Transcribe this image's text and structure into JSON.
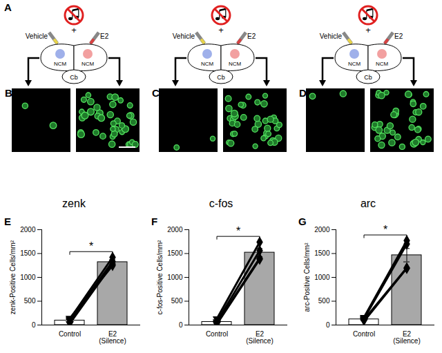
{
  "panel_letters": [
    "A",
    "B",
    "C",
    "D",
    "E",
    "F",
    "G"
  ],
  "schematic": {
    "left_injection": "Vehicle",
    "right_injection": "E2",
    "region": "NCM",
    "cerebellum": "Cb",
    "combined_with": "+"
  },
  "micrograph_labels": [
    "zenk",
    "c-fos",
    "arc"
  ],
  "chart_data": [
    {
      "type": "bar",
      "categories": [
        "Control",
        "E2\n(Silence)"
      ],
      "values": [
        95,
        1320
      ],
      "errors": [
        30,
        50
      ],
      "individual": [
        [
          120,
          1420
        ],
        [
          90,
          1330
        ],
        [
          140,
          1250
        ],
        [
          30,
          1280
        ]
      ],
      "ylabel": "zenk-Positive Cells/mm²",
      "ylim": [
        0,
        2000
      ],
      "yticks": [
        0,
        500,
        1000,
        1500,
        2000
      ],
      "colors": [
        "#ffffff",
        "#a8a8a8"
      ],
      "annotations": [
        "*"
      ]
    },
    {
      "type": "bar",
      "categories": [
        "Control",
        "E2\n(Silence)"
      ],
      "values": [
        65,
        1520
      ],
      "errors": [
        30,
        85
      ],
      "individual": [
        [
          130,
          1740
        ],
        [
          70,
          1560
        ],
        [
          40,
          1400
        ],
        [
          20,
          1380
        ]
      ],
      "ylabel": "c-fos-Positive Cells/mm²",
      "ylim": [
        0,
        2000
      ],
      "yticks": [
        0,
        500,
        1000,
        1500,
        2000
      ],
      "colors": [
        "#ffffff",
        "#a8a8a8"
      ],
      "annotations": [
        "*"
      ]
    },
    {
      "type": "bar",
      "categories": [
        "Control",
        "E2\n(Silence)"
      ],
      "values": [
        120,
        1465
      ],
      "errors": [
        30,
        140
      ],
      "individual": [
        [
          160,
          1770
        ],
        [
          130,
          1700
        ],
        [
          110,
          1200
        ],
        [
          80,
          1190
        ]
      ],
      "ylabel": "arc-Positive Cells/mm²",
      "ylim": [
        0,
        2000
      ],
      "yticks": [
        0,
        500,
        1000,
        1500,
        2000
      ],
      "colors": [
        "#ffffff",
        "#a8a8a8"
      ],
      "annotations": [
        "*"
      ]
    }
  ]
}
